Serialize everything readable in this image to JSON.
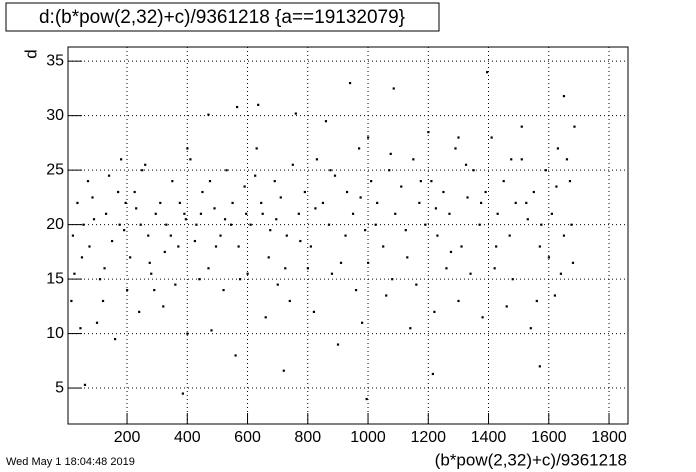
{
  "chart_data": {
    "type": "scatter",
    "title": "d:(b*pow(2,32)+c)/9361218 {a==19132079}",
    "x_label": "(b*pow(2,32)+c)/9361218",
    "y_label": "d",
    "timestamp": "Wed May  1 18:04:48 2019",
    "color": "#000000",
    "grid": true,
    "xlim": [
      4,
      1863
    ],
    "ylim": [
      1.7,
      36.3
    ],
    "xticks": [
      200,
      400,
      600,
      800,
      1000,
      1200,
      1400,
      1600,
      1800
    ],
    "yticks": [
      5,
      10,
      15,
      20,
      25,
      30,
      35
    ],
    "x": [
      20,
      35,
      50,
      70,
      90,
      110,
      130,
      150,
      170,
      190,
      210,
      230,
      250,
      270,
      290,
      310,
      330,
      350,
      370,
      390,
      410,
      430,
      450,
      470,
      490,
      510,
      530,
      550,
      570,
      590,
      610,
      630,
      650,
      670,
      690,
      710,
      730,
      750,
      770,
      790,
      810,
      830,
      850,
      870,
      890,
      910,
      930,
      950,
      970,
      990,
      1010,
      1030,
      1050,
      1070,
      1090,
      1110,
      1130,
      1150,
      1170,
      1190,
      1210,
      1230,
      1250,
      1270,
      1290,
      1310,
      1330,
      1350,
      1370,
      1390,
      1410,
      1430,
      1450,
      1470,
      1490,
      1510,
      1530,
      1550,
      1570,
      1590,
      1610,
      1630,
      1650,
      1670,
      1685,
      15,
      45,
      100,
      160,
      240,
      320,
      400,
      480,
      560,
      660,
      740,
      820,
      900,
      980,
      1060,
      1140,
      1220,
      1300,
      1380,
      1460,
      1540,
      1620,
      1680,
      940,
      1085,
      1395,
      1650,
      385,
      995,
      60,
      1215,
      1570,
      720,
      635,
      565,
      760,
      470,
      1200,
      1510,
      1300,
      860,
      1000,
      400,
      260,
      180,
      25,
      75,
      125,
      175,
      225,
      275,
      325,
      375,
      425,
      475,
      525,
      575,
      625,
      675,
      725,
      775,
      825,
      875,
      925,
      975,
      1025,
      1075,
      1125,
      1175,
      1225,
      1275,
      1325,
      1375,
      1425,
      1475,
      1525,
      1575,
      1625,
      1675,
      1660,
      1640,
      1600,
      1560,
      1480,
      1420,
      1340,
      1260,
      1160,
      1080,
      1000,
      960,
      880,
      800,
      700,
      600,
      520,
      440,
      360,
      280,
      200,
      120,
      55,
      85,
      140,
      195,
      245,
      295,
      345,
      395,
      445,
      495,
      545,
      595,
      645,
      695
    ],
    "values": [
      19,
      22,
      17,
      24,
      20.5,
      15,
      21,
      18.5,
      23,
      19.5,
      17,
      21.5,
      25,
      19,
      14,
      22,
      20,
      24,
      18,
      21,
      26,
      20,
      23,
      16,
      21.5,
      19,
      25,
      22,
      18,
      23.5,
      20,
      27,
      21,
      17,
      24,
      22.5,
      19,
      25.5,
      21,
      23,
      18,
      26,
      22,
      20,
      24.5,
      16.5,
      23,
      21,
      27,
      19.5,
      24,
      22,
      18,
      25,
      21,
      23.5,
      17,
      26,
      22,
      20,
      24,
      19,
      23,
      21,
      27,
      18,
      22.5,
      25,
      20,
      23,
      28,
      21,
      24,
      19,
      22,
      26,
      20.5,
      23,
      18,
      25,
      21,
      27,
      19,
      24,
      29,
      13,
      10.5,
      11,
      9.5,
      12,
      12.5,
      10,
      10.3,
      8,
      11.5,
      13,
      12,
      9,
      11,
      13.5,
      10.5,
      12,
      13,
      11.5,
      12.5,
      10.5,
      13.5,
      16.5,
      33,
      32.5,
      34,
      31.8,
      4.5,
      4,
      5.3,
      6.3,
      7,
      6.6,
      31,
      30.8,
      30.2,
      30.1,
      28.5,
      29,
      28,
      29.5,
      28,
      27,
      25.5,
      26,
      15.5,
      18,
      16,
      20,
      23,
      16.5,
      17.5,
      22,
      18.5,
      24,
      20.5,
      15,
      24.5,
      19.5,
      16,
      18.5,
      21.5,
      25,
      19,
      22.5,
      20,
      26.5,
      19.5,
      24,
      21.5,
      17.5,
      25.5,
      22,
      18,
      26,
      22,
      20,
      23.5,
      20,
      26,
      15.5,
      17,
      13,
      15,
      16,
      15.5,
      16,
      14.5,
      15,
      16.5,
      14,
      15.5,
      16,
      14.5,
      15.5,
      14,
      15,
      14.5,
      15.5,
      14,
      13,
      20,
      22.5,
      24.5,
      22,
      20,
      21,
      19,
      20.5,
      21,
      18,
      20,
      21,
      22,
      20.5
    ]
  }
}
